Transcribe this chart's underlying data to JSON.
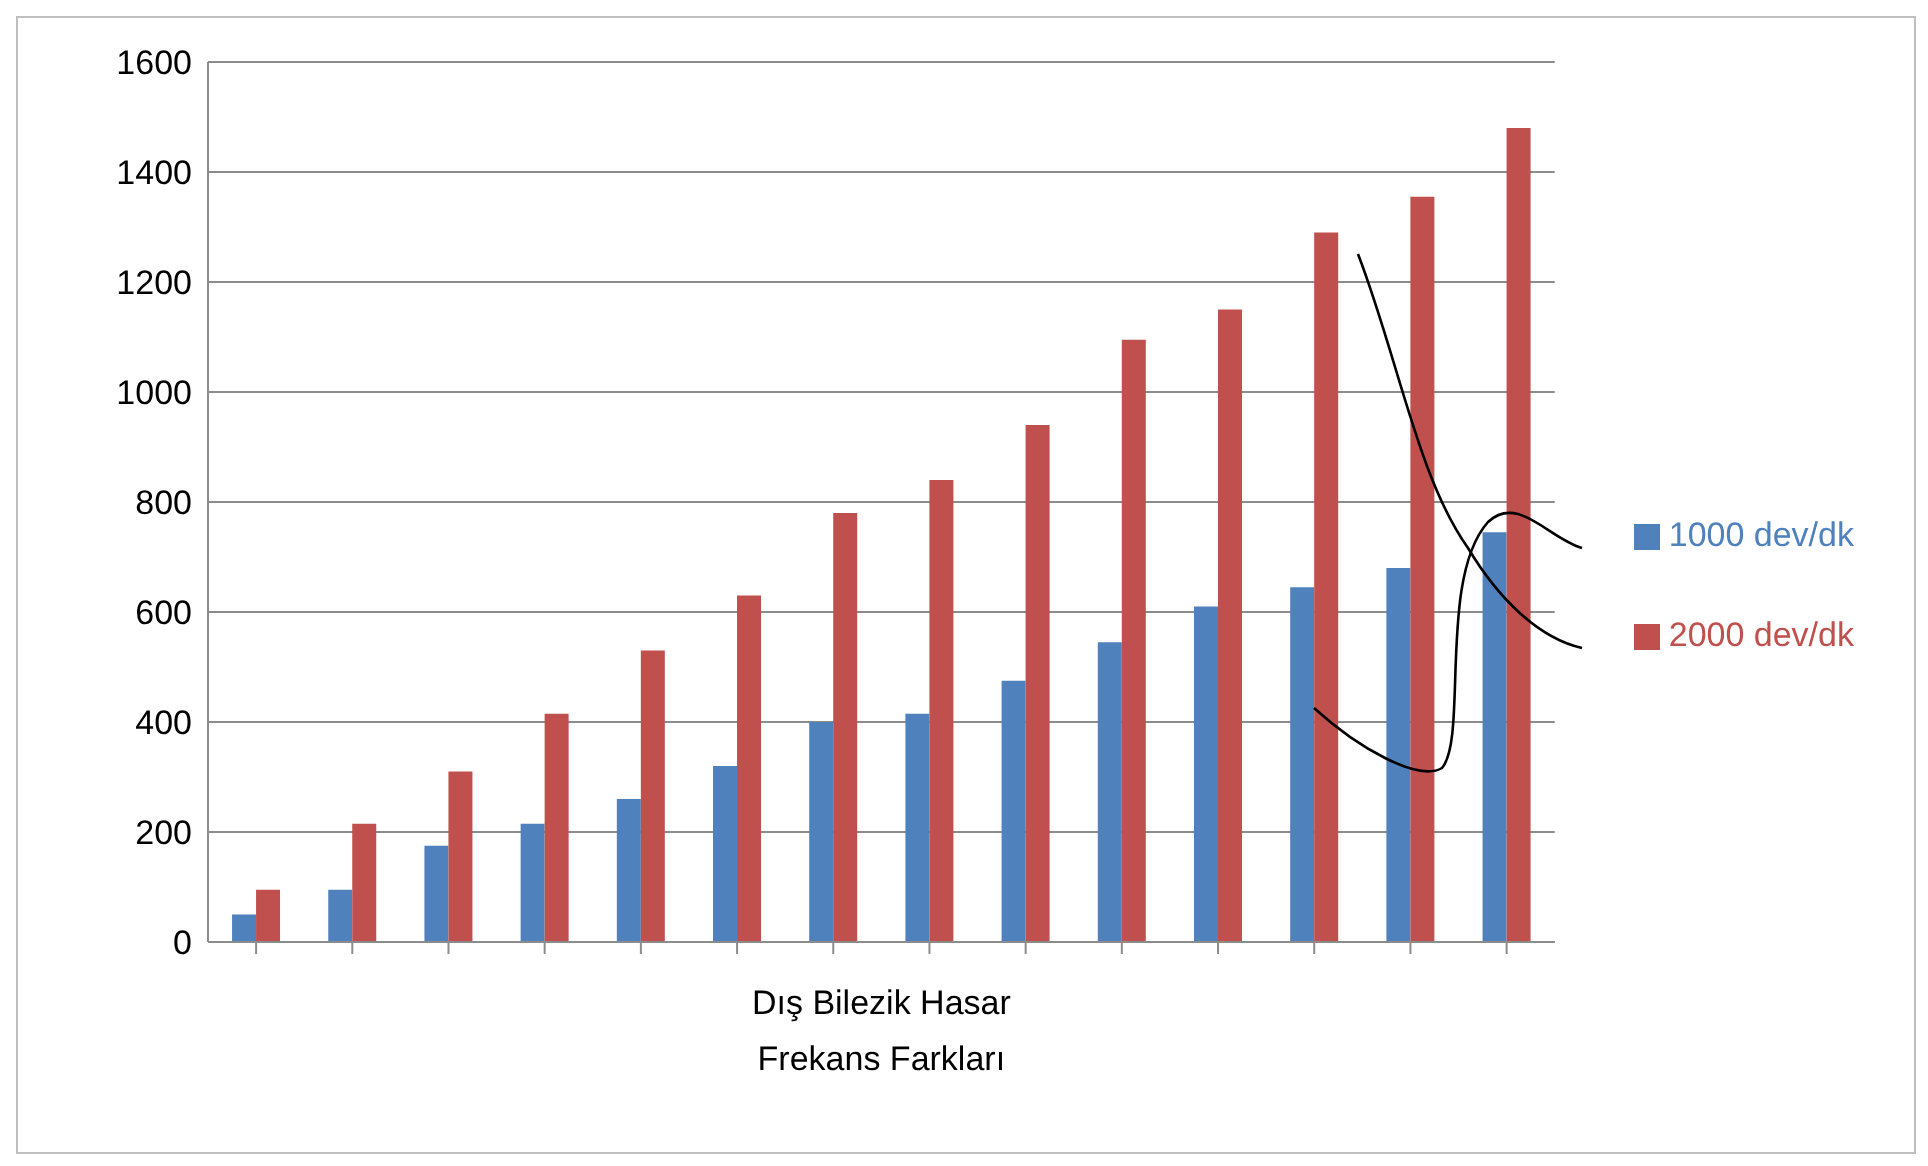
{
  "chart_data": {
    "type": "bar",
    "xlabel": "Dış Bilezik Hasar\nFrekans Farkları",
    "categories": [
      null,
      null,
      null,
      null,
      null,
      null,
      null,
      null,
      null,
      null,
      null,
      null,
      null,
      null
    ],
    "series": [
      {
        "name": "1000 dev/dk",
        "color": "#4f81bd",
        "values": [
          50,
          95,
          175,
          215,
          260,
          320,
          400,
          415,
          475,
          545,
          610,
          645,
          680,
          745
        ]
      },
      {
        "name": "2000 dev/dk",
        "color": "#c0504d",
        "values": [
          95,
          215,
          310,
          415,
          530,
          630,
          780,
          840,
          940,
          1095,
          1150,
          1290,
          1355,
          1480
        ]
      }
    ],
    "ylim": [
      0,
      1600
    ],
    "yticks": [
      0,
      200,
      400,
      600,
      800,
      1000,
      1200,
      1400,
      1600
    ],
    "grid": "y",
    "legend": "right"
  }
}
